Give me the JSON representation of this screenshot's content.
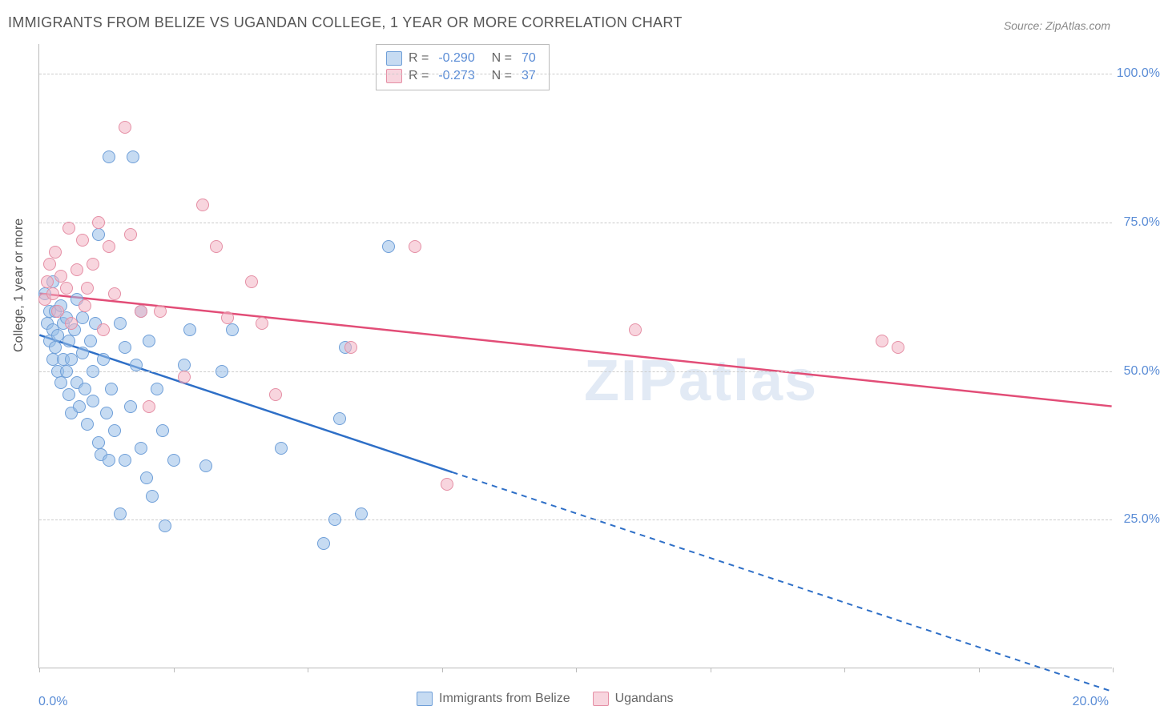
{
  "title": "IMMIGRANTS FROM BELIZE VS UGANDAN COLLEGE, 1 YEAR OR MORE CORRELATION CHART",
  "source": "Source: ZipAtlas.com",
  "watermark": "ZIPatlas",
  "chart": {
    "type": "scatter",
    "ylabel": "College, 1 year or more",
    "xlim": [
      0,
      20
    ],
    "ylim": [
      0,
      105
    ],
    "xtick_positions": [
      0,
      2.5,
      5,
      7.5,
      10,
      12.5,
      15,
      17.5,
      20
    ],
    "xtick_labels": {
      "0": "0.0%",
      "20": "20.0%"
    },
    "ytick_positions": [
      25,
      50,
      75,
      100
    ],
    "ytick_labels": [
      "25.0%",
      "50.0%",
      "75.0%",
      "100.0%"
    ],
    "grid_color": "#cccccc",
    "axis_color": "#bbbbbb",
    "tick_label_color": "#5b8dd6",
    "background_color": "#ffffff",
    "marker_radius": 8,
    "series": [
      {
        "name": "Immigrants from Belize",
        "fill": "rgba(151, 189, 232, 0.55)",
        "stroke": "#6f9fd8",
        "line_color": "#2e6fc7",
        "R": "-0.290",
        "N": "70",
        "regression": {
          "x1": 0,
          "y1": 56,
          "x2": 20,
          "y2": -4,
          "solid_until_x": 7.7
        },
        "points": [
          [
            0.1,
            63
          ],
          [
            0.15,
            58
          ],
          [
            0.2,
            60
          ],
          [
            0.2,
            55
          ],
          [
            0.25,
            57
          ],
          [
            0.25,
            52
          ],
          [
            0.25,
            65
          ],
          [
            0.3,
            54
          ],
          [
            0.3,
            60
          ],
          [
            0.35,
            50
          ],
          [
            0.35,
            56
          ],
          [
            0.4,
            48
          ],
          [
            0.4,
            61
          ],
          [
            0.45,
            52
          ],
          [
            0.45,
            58
          ],
          [
            0.5,
            50
          ],
          [
            0.5,
            59
          ],
          [
            0.55,
            46
          ],
          [
            0.55,
            55
          ],
          [
            0.6,
            52
          ],
          [
            0.6,
            43
          ],
          [
            0.65,
            57
          ],
          [
            0.7,
            48
          ],
          [
            0.7,
            62
          ],
          [
            0.75,
            44
          ],
          [
            0.8,
            53
          ],
          [
            0.8,
            59
          ],
          [
            0.85,
            47
          ],
          [
            0.9,
            41
          ],
          [
            0.95,
            55
          ],
          [
            1.0,
            50
          ],
          [
            1.0,
            45
          ],
          [
            1.05,
            58
          ],
          [
            1.1,
            38
          ],
          [
            1.1,
            73
          ],
          [
            1.15,
            36
          ],
          [
            1.2,
            52
          ],
          [
            1.25,
            43
          ],
          [
            1.3,
            35
          ],
          [
            1.3,
            86
          ],
          [
            1.35,
            47
          ],
          [
            1.4,
            40
          ],
          [
            1.5,
            58
          ],
          [
            1.5,
            26
          ],
          [
            1.6,
            54
          ],
          [
            1.6,
            35
          ],
          [
            1.7,
            44
          ],
          [
            1.75,
            86
          ],
          [
            1.8,
            51
          ],
          [
            1.9,
            37
          ],
          [
            1.9,
            60
          ],
          [
            2.0,
            32
          ],
          [
            2.05,
            55
          ],
          [
            2.1,
            29
          ],
          [
            2.2,
            47
          ],
          [
            2.3,
            40
          ],
          [
            2.35,
            24
          ],
          [
            2.5,
            35
          ],
          [
            2.7,
            51
          ],
          [
            2.8,
            57
          ],
          [
            3.1,
            34
          ],
          [
            3.4,
            50
          ],
          [
            3.6,
            57
          ],
          [
            4.5,
            37
          ],
          [
            5.3,
            21
          ],
          [
            5.5,
            25
          ],
          [
            5.6,
            42
          ],
          [
            5.7,
            54
          ],
          [
            6.0,
            26
          ],
          [
            6.5,
            71
          ]
        ]
      },
      {
        "name": "Ugandans",
        "fill": "rgba(243, 178, 195, 0.55)",
        "stroke": "#e58fa5",
        "line_color": "#e24d77",
        "R": "-0.273",
        "N": "37",
        "regression": {
          "x1": 0,
          "y1": 63,
          "x2": 20,
          "y2": 44,
          "solid_until_x": 20
        },
        "points": [
          [
            0.1,
            62
          ],
          [
            0.15,
            65
          ],
          [
            0.2,
            68
          ],
          [
            0.25,
            63
          ],
          [
            0.3,
            70
          ],
          [
            0.35,
            60
          ],
          [
            0.4,
            66
          ],
          [
            0.5,
            64
          ],
          [
            0.55,
            74
          ],
          [
            0.6,
            58
          ],
          [
            0.7,
            67
          ],
          [
            0.8,
            72
          ],
          [
            0.85,
            61
          ],
          [
            0.9,
            64
          ],
          [
            1.0,
            68
          ],
          [
            1.1,
            75
          ],
          [
            1.2,
            57
          ],
          [
            1.3,
            71
          ],
          [
            1.4,
            63
          ],
          [
            1.6,
            91
          ],
          [
            1.7,
            73
          ],
          [
            1.9,
            60
          ],
          [
            2.05,
            44
          ],
          [
            2.25,
            60
          ],
          [
            2.7,
            49
          ],
          [
            3.05,
            78
          ],
          [
            3.3,
            71
          ],
          [
            3.5,
            59
          ],
          [
            3.95,
            65
          ],
          [
            4.15,
            58
          ],
          [
            4.4,
            46
          ],
          [
            5.8,
            54
          ],
          [
            7.0,
            71
          ],
          [
            7.6,
            31
          ],
          [
            11.1,
            57
          ],
          [
            15.7,
            55
          ],
          [
            16.0,
            54
          ]
        ]
      }
    ],
    "legend": {
      "series1_label": "Immigrants from Belize",
      "series2_label": "Ugandans"
    }
  }
}
